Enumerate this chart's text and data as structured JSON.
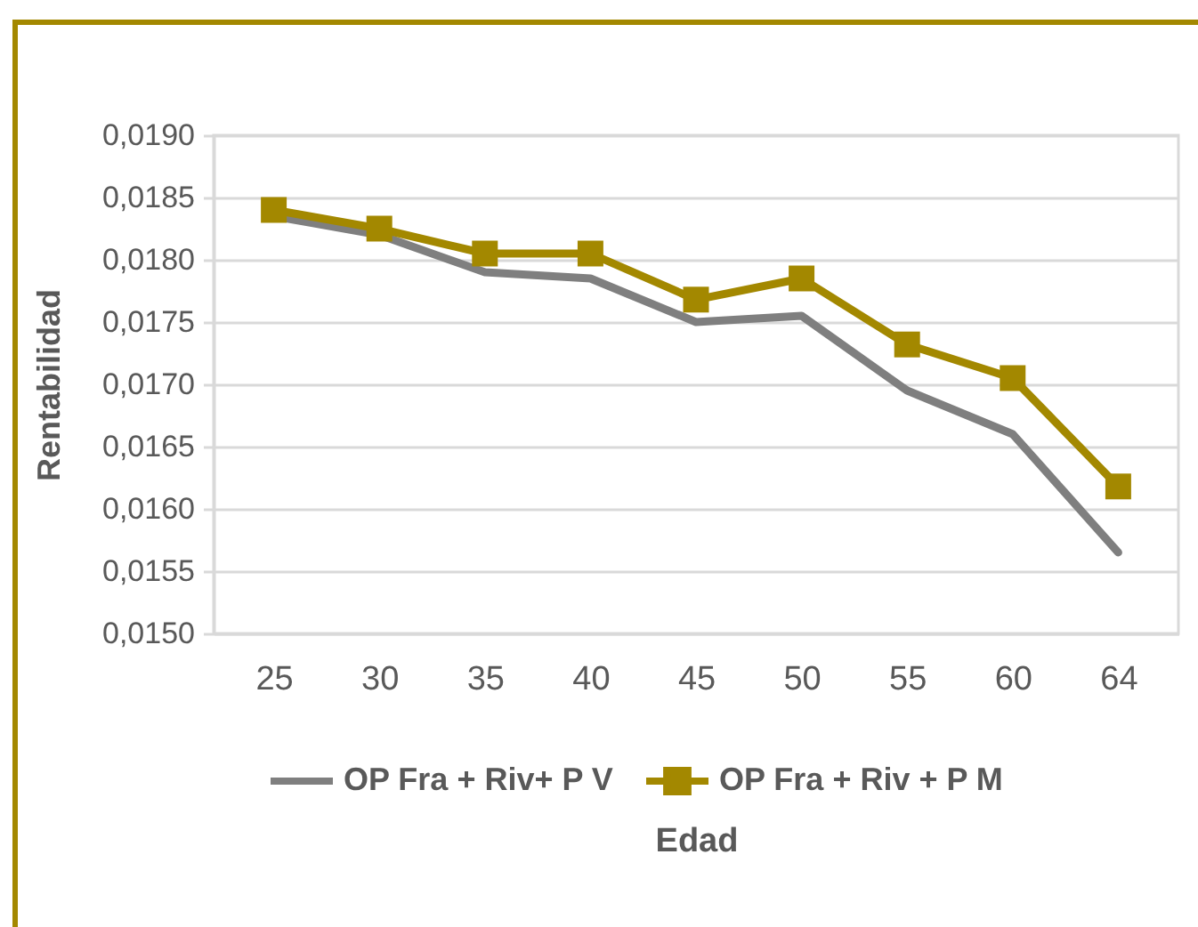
{
  "chart_data": {
    "type": "line",
    "categories": [
      "25",
      "30",
      "35",
      "40",
      "45",
      "50",
      "55",
      "60",
      "64"
    ],
    "series": [
      {
        "name": "OP Fra + Riv+ P V",
        "color": "#7f7f7f",
        "marker": "none",
        "values": [
          0.01835,
          0.0182,
          0.0179,
          0.01785,
          0.0175,
          0.01755,
          0.01695,
          0.0166,
          0.01565
        ]
      },
      {
        "name": "OP Fra + Riv + P M",
        "color": "#a38800",
        "marker": "square",
        "values": [
          0.0184,
          0.01825,
          0.01805,
          0.01805,
          0.01768,
          0.01785,
          0.01732,
          0.01705,
          0.01618
        ]
      }
    ],
    "xlabel": "Edad",
    "ylabel": "Rentabilidad",
    "ylim": [
      0.015,
      0.019
    ],
    "yticks": [
      {
        "value": 0.015,
        "label": "0,0150"
      },
      {
        "value": 0.0155,
        "label": "0,0155"
      },
      {
        "value": 0.016,
        "label": "0,0160"
      },
      {
        "value": 0.0165,
        "label": "0,0165"
      },
      {
        "value": 0.017,
        "label": "0,0170"
      },
      {
        "value": 0.0175,
        "label": "0,0175"
      },
      {
        "value": 0.018,
        "label": "0,0180"
      },
      {
        "value": 0.0185,
        "label": "0,0185"
      },
      {
        "value": 0.019,
        "label": "0,0190"
      }
    ],
    "grid": "y",
    "legend": "bottom",
    "line_style": "solid"
  }
}
